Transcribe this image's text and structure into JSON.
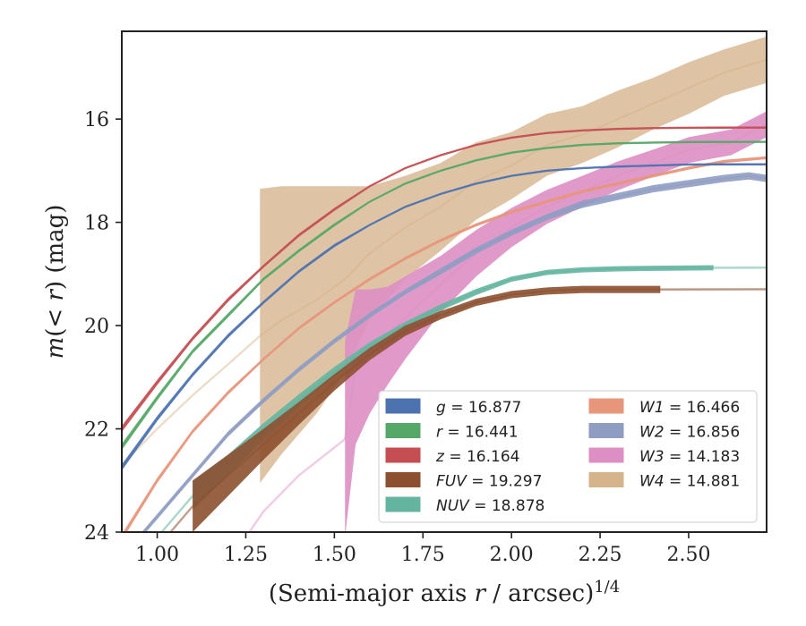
{
  "chart_data": {
    "type": "line",
    "xlabel": "(Semi-major axis r / arcsec)^1/4",
    "ylabel": "m(< r) (mag)",
    "xlim": [
      0.9,
      2.72
    ],
    "ylim": [
      24.0,
      14.3
    ],
    "y_inverted": true,
    "xticks": [
      "1.00",
      "1.25",
      "1.50",
      "1.75",
      "2.00",
      "2.25",
      "2.50"
    ],
    "xtick_values": [
      1.0,
      1.25,
      1.5,
      1.75,
      2.0,
      2.25,
      2.5
    ],
    "yticks": [
      "16",
      "18",
      "20",
      "22",
      "24"
    ],
    "ytick_values": [
      16,
      18,
      20,
      22,
      24
    ],
    "grid": false,
    "legend_placement": "lower-right",
    "series": [
      {
        "name": "g = 16.877",
        "band": "g",
        "total": "16.877",
        "color": "#4c72b0",
        "style": "band",
        "x": [
          0.9,
          1.0,
          1.1,
          1.2,
          1.3,
          1.4,
          1.5,
          1.6,
          1.7,
          1.8,
          1.9,
          2.0,
          2.1,
          2.2,
          2.3,
          2.4,
          2.5,
          2.6,
          2.72
        ],
        "y": [
          22.75,
          21.8,
          20.95,
          20.2,
          19.55,
          18.95,
          18.45,
          18.05,
          17.7,
          17.45,
          17.25,
          17.1,
          17.0,
          16.95,
          16.92,
          16.9,
          16.88,
          16.878,
          16.877
        ],
        "err": [
          0.06,
          0.05,
          0.04,
          0.04,
          0.03,
          0.03,
          0.03,
          0.02,
          0.02,
          0.02,
          0.02,
          0.02,
          0.02,
          0.02,
          0.02,
          0.02,
          0.02,
          0.02,
          0.02
        ]
      },
      {
        "name": "r = 16.441",
        "band": "r",
        "total": "16.441",
        "color": "#55a868",
        "style": "band",
        "x": [
          0.9,
          1.0,
          1.1,
          1.2,
          1.3,
          1.4,
          1.5,
          1.6,
          1.7,
          1.8,
          1.9,
          2.0,
          2.1,
          2.2,
          2.3,
          2.4,
          2.5,
          2.6,
          2.72
        ],
        "y": [
          22.35,
          21.4,
          20.5,
          19.8,
          19.1,
          18.55,
          18.05,
          17.6,
          17.25,
          17.0,
          16.8,
          16.65,
          16.56,
          16.5,
          16.47,
          16.455,
          16.445,
          16.442,
          16.441
        ],
        "err": [
          0.06,
          0.05,
          0.04,
          0.04,
          0.03,
          0.03,
          0.03,
          0.02,
          0.02,
          0.02,
          0.02,
          0.02,
          0.02,
          0.02,
          0.02,
          0.02,
          0.02,
          0.02,
          0.02
        ]
      },
      {
        "name": "z = 16.164",
        "band": "z",
        "total": "16.164",
        "color": "#c44e52",
        "style": "band",
        "x": [
          0.9,
          1.0,
          1.1,
          1.2,
          1.3,
          1.4,
          1.5,
          1.6,
          1.7,
          1.8,
          1.9,
          2.0,
          2.1,
          2.2,
          2.3,
          2.4,
          2.5,
          2.6,
          2.72
        ],
        "y": [
          22.0,
          21.1,
          20.25,
          19.5,
          18.85,
          18.25,
          17.75,
          17.3,
          16.95,
          16.7,
          16.5,
          16.36,
          16.27,
          16.22,
          16.19,
          16.175,
          16.168,
          16.165,
          16.164
        ],
        "err": [
          0.06,
          0.05,
          0.04,
          0.04,
          0.03,
          0.03,
          0.03,
          0.02,
          0.02,
          0.02,
          0.02,
          0.02,
          0.02,
          0.02,
          0.02,
          0.02,
          0.02,
          0.02,
          0.02
        ]
      },
      {
        "name": "FUV = 19.297",
        "band": "FUV",
        "total": "19.297",
        "color": "#8c5030",
        "style": "band",
        "x": [
          1.1,
          1.2,
          1.3,
          1.4,
          1.5,
          1.6,
          1.7,
          1.8,
          1.9,
          2.0,
          2.1,
          2.2,
          2.3,
          2.42
        ],
        "y": [
          23.5,
          22.9,
          22.3,
          21.7,
          21.1,
          20.55,
          20.1,
          19.8,
          19.55,
          19.4,
          19.33,
          19.3,
          19.3,
          19.3
        ],
        "err": [
          0.5,
          0.4,
          0.3,
          0.22,
          0.16,
          0.12,
          0.1,
          0.08,
          0.07,
          0.07,
          0.07,
          0.07,
          0.07,
          0.07
        ]
      },
      {
        "name": "NUV = 18.878",
        "band": "NUV",
        "total": "18.878",
        "color": "#64b5a0",
        "style": "band",
        "x": [
          1.1,
          1.2,
          1.3,
          1.4,
          1.5,
          1.6,
          1.7,
          1.8,
          1.9,
          2.0,
          2.1,
          2.2,
          2.3,
          2.4,
          2.57
        ],
        "y": [
          23.3,
          22.7,
          22.05,
          21.45,
          20.9,
          20.4,
          20.0,
          19.65,
          19.35,
          19.1,
          18.97,
          18.92,
          18.9,
          18.89,
          18.88
        ],
        "err": [
          0.28,
          0.2,
          0.16,
          0.12,
          0.1,
          0.08,
          0.07,
          0.06,
          0.06,
          0.05,
          0.05,
          0.05,
          0.05,
          0.05,
          0.05
        ]
      },
      {
        "name": "W1 = 16.466",
        "band": "W1",
        "total": "16.466",
        "color": "#e8967b",
        "style": "band",
        "x": [
          0.9,
          1.0,
          1.1,
          1.2,
          1.3,
          1.4,
          1.5,
          1.6,
          1.7,
          1.8,
          1.9,
          2.0,
          2.1,
          2.2,
          2.3,
          2.4,
          2.5,
          2.6,
          2.72
        ],
        "y": [
          24.1,
          23.0,
          22.05,
          21.3,
          20.65,
          20.05,
          19.55,
          19.1,
          18.7,
          18.35,
          18.05,
          17.8,
          17.6,
          17.4,
          17.25,
          17.1,
          16.95,
          16.82,
          16.75
        ],
        "err": [
          0.06,
          0.05,
          0.04,
          0.04,
          0.03,
          0.03,
          0.03,
          0.03,
          0.03,
          0.03,
          0.03,
          0.03,
          0.03,
          0.03,
          0.03,
          0.03,
          0.03,
          0.03,
          0.03
        ]
      },
      {
        "name": "W2 = 16.856",
        "band": "W2",
        "total": "16.856",
        "color": "#8f9dc2",
        "style": "band",
        "x": [
          0.9,
          1.0,
          1.1,
          1.2,
          1.3,
          1.4,
          1.5,
          1.6,
          1.7,
          1.8,
          1.9,
          2.0,
          2.1,
          2.2,
          2.3,
          2.4,
          2.5,
          2.6,
          2.67,
          2.72
        ],
        "y": [
          24.5,
          23.7,
          22.9,
          22.1,
          21.45,
          20.85,
          20.3,
          19.8,
          19.35,
          18.95,
          18.55,
          18.2,
          17.9,
          17.65,
          17.5,
          17.35,
          17.25,
          17.15,
          17.1,
          17.15
        ],
        "err": [
          0.05,
          0.05,
          0.05,
          0.05,
          0.05,
          0.05,
          0.05,
          0.05,
          0.05,
          0.06,
          0.06,
          0.06,
          0.06,
          0.07,
          0.07,
          0.07,
          0.07,
          0.07,
          0.07,
          0.07
        ]
      },
      {
        "name": "W3 = 14.183",
        "band": "W3",
        "total": "14.183",
        "color": "#dd8fc4",
        "style": "band",
        "x": [
          1.53,
          1.56,
          1.6,
          1.65,
          1.7,
          1.8,
          1.9,
          2.0,
          2.1,
          2.2,
          2.3,
          2.4,
          2.5,
          2.62,
          2.72
        ],
        "y": [
          22.2,
          20.8,
          20.5,
          20.2,
          19.85,
          19.2,
          18.6,
          18.1,
          17.7,
          17.4,
          17.1,
          16.85,
          16.6,
          16.45,
          16.1
        ],
        "err": [
          1.9,
          1.5,
          1.2,
          0.95,
          0.8,
          0.55,
          0.45,
          0.38,
          0.33,
          0.3,
          0.28,
          0.26,
          0.25,
          0.25,
          0.25
        ]
      },
      {
        "name": "W4 = 14.881",
        "band": "W4",
        "total": "14.881",
        "color": "#d5b48c",
        "style": "band",
        "x": [
          1.29,
          1.35,
          1.45,
          1.53,
          1.6,
          1.7,
          1.8,
          1.9,
          2.0,
          2.1,
          2.2,
          2.3,
          2.4,
          2.5,
          2.6,
          2.72
        ],
        "y": [
          20.2,
          19.9,
          19.5,
          19.1,
          18.6,
          18.1,
          17.7,
          17.2,
          16.9,
          16.5,
          16.3,
          16.0,
          15.7,
          15.4,
          15.1,
          14.85
        ],
        "err": [
          2.85,
          2.6,
          2.2,
          1.8,
          1.3,
          1.0,
          0.85,
          0.75,
          0.65,
          0.6,
          0.55,
          0.55,
          0.5,
          0.5,
          0.45,
          0.45
        ]
      }
    ],
    "extrapolations": [
      {
        "band": "g",
        "color": "#4c72b0",
        "opacity": 0.55,
        "x": [
          2.55,
          2.72
        ],
        "y": [
          16.878,
          16.877
        ]
      },
      {
        "band": "z",
        "color": "#c44e52",
        "opacity": 0.55,
        "x": [
          2.55,
          2.72
        ],
        "y": [
          16.166,
          16.164
        ]
      },
      {
        "band": "W4",
        "color": "#d5b48c",
        "opacity": 0.45,
        "x": [
          0.9,
          1.0,
          1.1,
          1.2,
          1.29
        ],
        "y": [
          22.7,
          22.0,
          21.35,
          20.75,
          20.2
        ]
      },
      {
        "band": "W3",
        "color": "#dd8fc4",
        "opacity": 0.45,
        "x": [
          1.25,
          1.3,
          1.4,
          1.53
        ],
        "y": [
          24.1,
          23.6,
          22.9,
          22.2
        ]
      },
      {
        "band": "FUV",
        "color": "#8c5030",
        "opacity": 0.55,
        "x": [
          0.9,
          1.0,
          1.1
        ],
        "y": [
          25.0,
          24.3,
          23.5
        ]
      },
      {
        "band": "FUV",
        "color": "#8c5030",
        "opacity": 0.6,
        "x": [
          2.42,
          2.72
        ],
        "y": [
          19.3,
          19.297
        ]
      },
      {
        "band": "NUV",
        "color": "#64b5a0",
        "opacity": 0.55,
        "x": [
          0.9,
          1.0,
          1.1
        ],
        "y": [
          24.9,
          24.1,
          23.3
        ]
      },
      {
        "band": "NUV",
        "color": "#64b5a0",
        "opacity": 0.55,
        "x": [
          2.57,
          2.72
        ],
        "y": [
          18.88,
          18.878
        ]
      }
    ]
  }
}
